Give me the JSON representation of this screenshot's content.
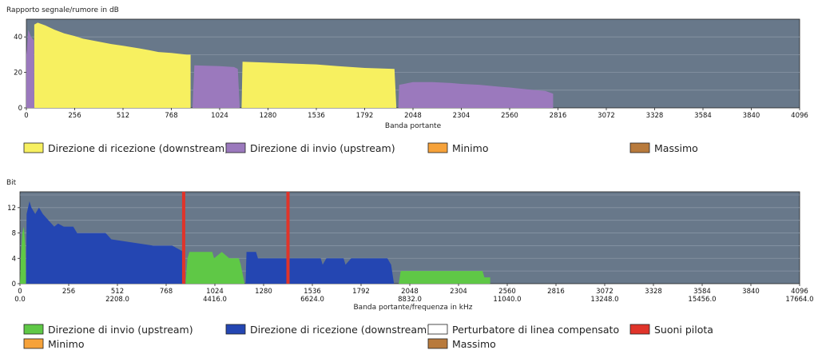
{
  "colors": {
    "plot_bg": "#68788a",
    "grid": "#8795a5",
    "downstream_snr": "#f7f060",
    "upstream_snr": "#9b79bd",
    "downstream_bits": "#2446b2",
    "upstream_bits": "#5fc846",
    "pilot": "#e0342a",
    "minimum": "#f6a23a",
    "maximum": "#b87a3c",
    "perturbator": "#ffffff"
  },
  "chart_data": [
    {
      "type": "area",
      "title": "",
      "ylabel": "Rapporto segnale/rumore in dB",
      "xlabel": "Banda portante",
      "xlim": [
        0,
        4096
      ],
      "ylim": [
        0,
        50
      ],
      "xticks": [
        "0",
        "256",
        "512",
        "768",
        "1024",
        "1280",
        "1536",
        "1792",
        "2048",
        "2304",
        "2560",
        "2816",
        "3072",
        "3328",
        "3584",
        "3840",
        "4096"
      ],
      "yticks": [
        "0",
        "20",
        "40"
      ],
      "series": [
        {
          "name": "Direzione di ricezione (downstream)",
          "color_key": "downstream_snr",
          "points": [
            [
              42,
              0
            ],
            [
              42,
              47
            ],
            [
              60,
              48
            ],
            [
              100,
              46.5
            ],
            [
              150,
              44
            ],
            [
              200,
              42
            ],
            [
              256,
              40.5
            ],
            [
              300,
              39
            ],
            [
              350,
              38
            ],
            [
              400,
              37
            ],
            [
              450,
              36
            ],
            [
              512,
              35
            ],
            [
              600,
              33.5
            ],
            [
              650,
              32.5
            ],
            [
              700,
              31.5
            ],
            [
              768,
              31
            ],
            [
              850,
              30
            ],
            [
              870,
              30
            ],
            [
              870,
              0
            ]
          ]
        },
        {
          "name": "Direzione di invio  (upstream)",
          "color_key": "upstream_snr",
          "points": [
            [
              0,
              0
            ],
            [
              0,
              30
            ],
            [
              10,
              44
            ],
            [
              25,
              40
            ],
            [
              40,
              38
            ],
            [
              42,
              0
            ]
          ]
        },
        {
          "name": "Direzione di invio  (upstream)",
          "color_key": "upstream_snr",
          "points": [
            [
              880,
              0
            ],
            [
              890,
              24
            ],
            [
              1024,
              23.5
            ],
            [
              1100,
              23
            ],
            [
              1120,
              22
            ],
            [
              1130,
              0
            ]
          ]
        },
        {
          "name": "Direzione di ricezione (downstream)",
          "color_key": "downstream_snr",
          "points": [
            [
              1140,
              0
            ],
            [
              1145,
              26
            ],
            [
              1280,
              25.5
            ],
            [
              1400,
              25
            ],
            [
              1536,
              24.5
            ],
            [
              1650,
              23.5
            ],
            [
              1792,
              22.5
            ],
            [
              1950,
              22
            ],
            [
              1960,
              0
            ]
          ]
        },
        {
          "name": "Direzione di invio  (upstream)",
          "color_key": "upstream_snr",
          "points": [
            [
              1970,
              0
            ],
            [
              1975,
              13
            ],
            [
              2048,
              14.5
            ],
            [
              2150,
              14.5
            ],
            [
              2250,
              14
            ],
            [
              2304,
              13.5
            ],
            [
              2400,
              13
            ],
            [
              2500,
              12
            ],
            [
              2560,
              11.5
            ],
            [
              2650,
              10.5
            ],
            [
              2750,
              9.5
            ],
            [
              2790,
              8
            ],
            [
              2790,
              0
            ]
          ]
        }
      ],
      "legend": [
        {
          "label": "Direzione di ricezione (downstream)",
          "color_key": "downstream_snr"
        },
        {
          "label": "Direzione di invio  (upstream)",
          "color_key": "upstream_snr"
        },
        {
          "label": "Minimo",
          "color_key": "minimum"
        },
        {
          "label": "Massimo",
          "color_key": "maximum"
        }
      ]
    },
    {
      "type": "area",
      "title": "",
      "ylabel": "Bit",
      "xlabel": "Banda portante/frequenza in kHz",
      "xlim": [
        0,
        4096
      ],
      "ylim": [
        0,
        14.5
      ],
      "xticks": [
        "0",
        "256",
        "512",
        "768",
        "1024",
        "1280",
        "1536",
        "1792",
        "2048",
        "2304",
        "2560",
        "2816",
        "3072",
        "3328",
        "3584",
        "3840",
        "4096"
      ],
      "xticks_freq": [
        "0.0",
        "2208.0",
        "4416.0",
        "6624.0",
        "8832.0",
        "11040.0",
        "13248.0",
        "15456.0",
        "17664.0"
      ],
      "yticks": [
        "0",
        "4",
        "8",
        "12"
      ],
      "series": [
        {
          "name": "Direzione di invio  (upstream)",
          "color_key": "upstream_bits",
          "points": [
            [
              0,
              0
            ],
            [
              4,
              4
            ],
            [
              12,
              8
            ],
            [
              20,
              9
            ],
            [
              28,
              6
            ],
            [
              32,
              0
            ]
          ]
        },
        {
          "name": "Direzione di ricezione (downstream)",
          "color_key": "downstream_bits",
          "points": [
            [
              32,
              0
            ],
            [
              35,
              11
            ],
            [
              50,
              13
            ],
            [
              60,
              12
            ],
            [
              80,
              11
            ],
            [
              100,
              12
            ],
            [
              120,
              11
            ],
            [
              150,
              10
            ],
            [
              180,
              9
            ],
            [
              200,
              9.5
            ],
            [
              230,
              9
            ],
            [
              280,
              9
            ],
            [
              300,
              8
            ],
            [
              450,
              8
            ],
            [
              480,
              7
            ],
            [
              700,
              6
            ],
            [
              800,
              6
            ],
            [
              860,
              5
            ],
            [
              865,
              0
            ]
          ]
        },
        {
          "name": "Direzione di invio  (upstream)",
          "color_key": "upstream_bits",
          "points": [
            [
              870,
              0
            ],
            [
              880,
              4
            ],
            [
              890,
              5
            ],
            [
              1010,
              5
            ],
            [
              1020,
              4
            ],
            [
              1060,
              5
            ],
            [
              1100,
              4
            ],
            [
              1150,
              4
            ],
            [
              1160,
              3
            ],
            [
              1180,
              0
            ]
          ]
        },
        {
          "name": "Direzione di ricezione (downstream)",
          "color_key": "downstream_bits",
          "points": [
            [
              1185,
              0
            ],
            [
              1190,
              5
            ],
            [
              1240,
              5
            ],
            [
              1250,
              4
            ],
            [
              1580,
              4
            ],
            [
              1590,
              3
            ],
            [
              1610,
              4
            ],
            [
              1700,
              4
            ],
            [
              1710,
              3
            ],
            [
              1740,
              4
            ],
            [
              1930,
              4
            ],
            [
              1950,
              3
            ],
            [
              1965,
              0
            ]
          ]
        },
        {
          "name": "Direzione di invio  (upstream)",
          "color_key": "upstream_bits",
          "points": [
            [
              1990,
              0
            ],
            [
              2000,
              2
            ],
            [
              2430,
              2
            ],
            [
              2440,
              1
            ],
            [
              2470,
              1
            ],
            [
              2470,
              0
            ]
          ]
        }
      ],
      "pilot_tones": [
        860,
        1408
      ],
      "legend": [
        {
          "label": "Direzione di invio  (upstream)",
          "color_key": "upstream_bits"
        },
        {
          "label": "Direzione di ricezione (downstream)",
          "color_key": "downstream_bits"
        },
        {
          "label": "Perturbatore di linea compensato",
          "color_key": "perturbator"
        },
        {
          "label": "Suoni pilota",
          "color_key": "pilot"
        },
        {
          "label": "Minimo",
          "color_key": "minimum"
        },
        {
          "label": "Massimo",
          "color_key": "maximum"
        }
      ]
    }
  ]
}
